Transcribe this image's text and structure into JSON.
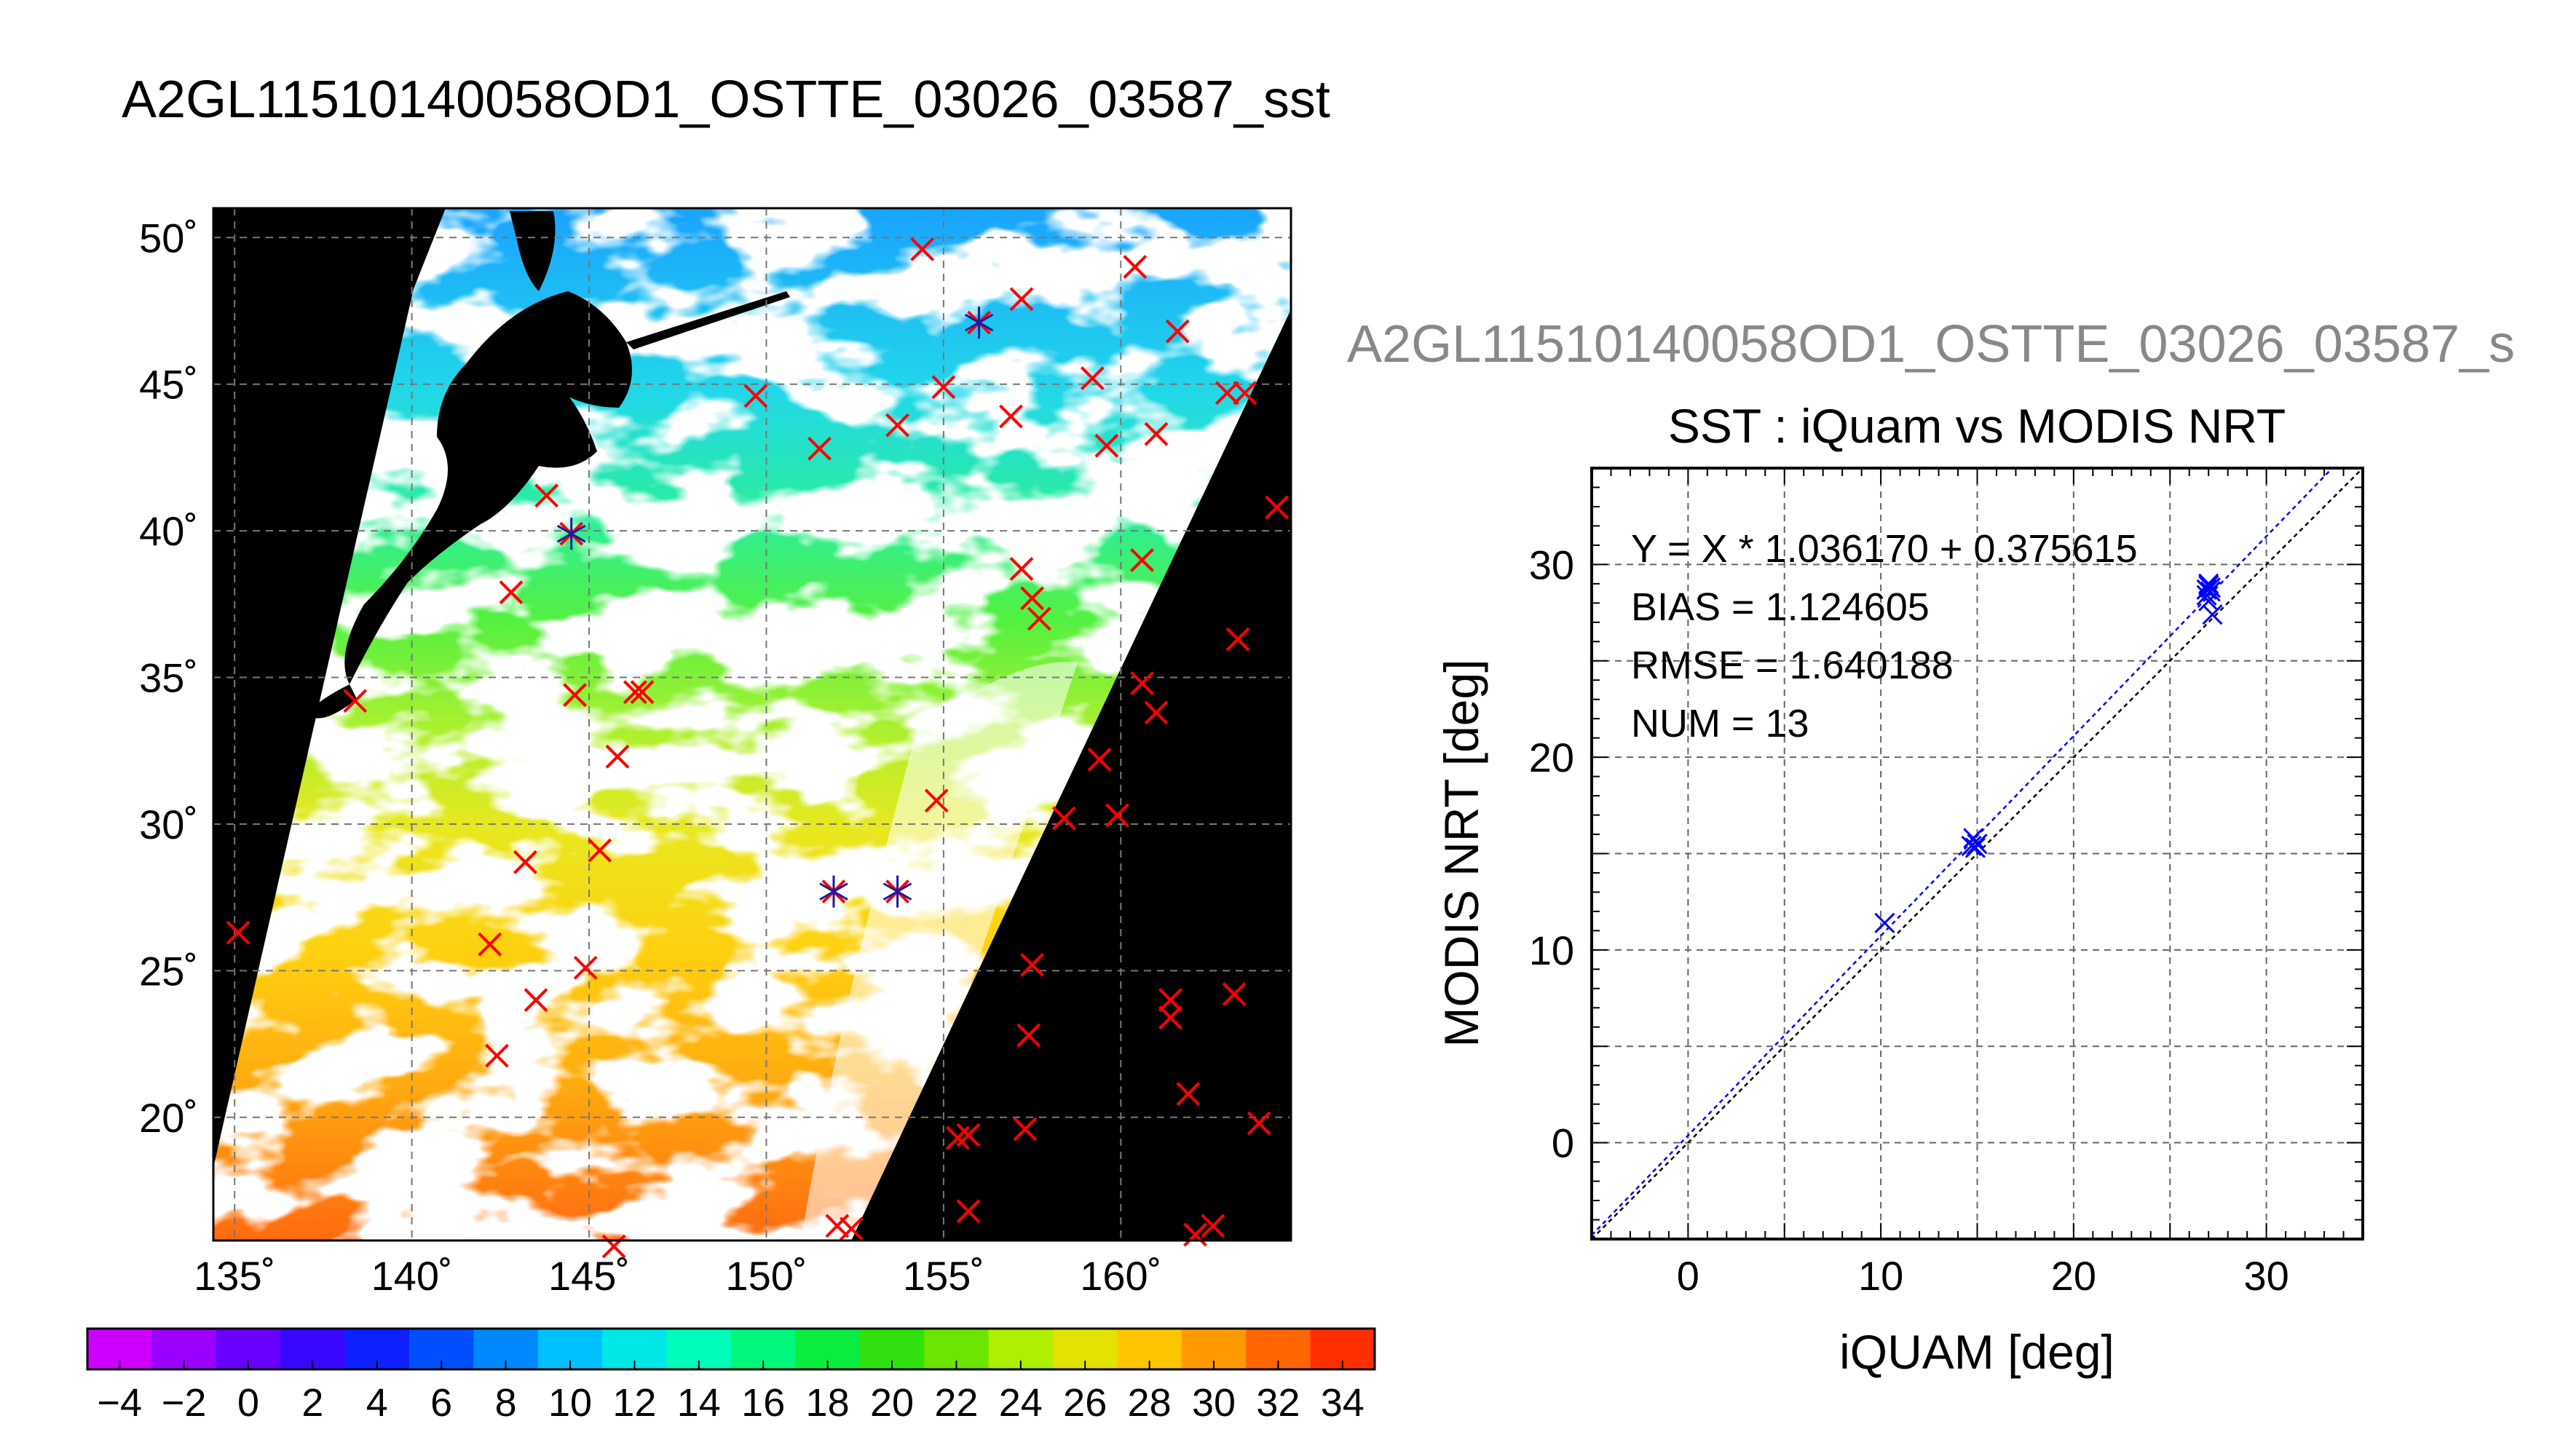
{
  "main_title": "A2GL11510140058OD1_OSTTE_03026_03587_sst",
  "sub_title": "A2GL11510140058OD1_OSTTE_03026_03587_s",
  "chart_data": [
    {
      "type": "map",
      "lon_ticks": [
        "135˚",
        "140˚",
        "145˚",
        "150˚",
        "155˚",
        "160˚"
      ],
      "lat_ticks": [
        "20˚",
        "25˚",
        "30˚",
        "35˚",
        "40˚",
        "45˚",
        "50˚"
      ],
      "lon_values": [
        135,
        140,
        145,
        150,
        155,
        160
      ],
      "lat_values": [
        20,
        25,
        30,
        35,
        40,
        45,
        50
      ],
      "xlim": [
        134.4,
        164.8
      ],
      "ylim": [
        15.8,
        51.0
      ],
      "grid": true,
      "background": "#000000",
      "match_points": [
        [
          135.1,
          26.3
        ],
        [
          138.4,
          34.2
        ],
        [
          142.2,
          25.9
        ],
        [
          142.4,
          22.1
        ],
        [
          142.8,
          37.9
        ],
        [
          143.2,
          28.7
        ],
        [
          143.5,
          24.0
        ],
        [
          143.8,
          41.2
        ],
        [
          144.5,
          39.9
        ],
        [
          144.6,
          34.4
        ],
        [
          144.9,
          25.1
        ],
        [
          145.3,
          29.1
        ],
        [
          145.8,
          32.3
        ],
        [
          146.3,
          34.5
        ],
        [
          146.5,
          34.5
        ],
        [
          149.7,
          44.6
        ],
        [
          151.5,
          42.8
        ],
        [
          151.9,
          27.7
        ],
        [
          152.0,
          16.3
        ],
        [
          152.4,
          16.2
        ],
        [
          153.7,
          27.7
        ],
        [
          153.7,
          43.6
        ],
        [
          154.4,
          49.6
        ],
        [
          154.8,
          30.8
        ],
        [
          155.0,
          44.9
        ],
        [
          155.4,
          19.3
        ],
        [
          155.7,
          19.4
        ],
        [
          155.7,
          16.8
        ],
        [
          156.0,
          47.1
        ],
        [
          156.9,
          43.9
        ],
        [
          157.2,
          38.7
        ],
        [
          157.2,
          47.9
        ],
        [
          157.3,
          19.6
        ],
        [
          157.4,
          22.8
        ],
        [
          157.5,
          25.2
        ],
        [
          157.5,
          37.7
        ],
        [
          157.7,
          37.0
        ],
        [
          158.4,
          30.2
        ],
        [
          159.2,
          45.2
        ],
        [
          159.4,
          32.2
        ],
        [
          159.6,
          42.9
        ],
        [
          159.9,
          30.3
        ],
        [
          160.4,
          49.0
        ],
        [
          160.6,
          39.0
        ],
        [
          160.6,
          34.8
        ],
        [
          161.0,
          33.8
        ],
        [
          161.0,
          43.3
        ],
        [
          161.4,
          24.0
        ],
        [
          161.4,
          23.4
        ],
        [
          161.6,
          46.8
        ],
        [
          161.9,
          20.8
        ],
        [
          162.1,
          16.0
        ],
        [
          162.6,
          16.3
        ],
        [
          163.0,
          44.7
        ],
        [
          163.2,
          24.2
        ],
        [
          163.3,
          36.3
        ],
        [
          163.5,
          44.7
        ],
        [
          163.9,
          19.8
        ],
        [
          164.4,
          40.8
        ],
        [
          145.7,
          15.6
        ]
      ],
      "blue_points": [
        [
          144.5,
          39.9
        ],
        [
          151.9,
          27.7
        ],
        [
          153.7,
          27.7
        ],
        [
          156.0,
          47.1
        ]
      ],
      "match_color": "#ff0000",
      "blue_color": "#1a1aa0"
    },
    {
      "type": "scatter",
      "title": "SST : iQuam vs MODIS NRT",
      "xlabel": "iQUAM [deg]",
      "ylabel": "MODIS NRT [deg]",
      "xlim": [
        -5,
        35
      ],
      "ylim": [
        -5,
        35
      ],
      "xticks": [
        0,
        10,
        20,
        30
      ],
      "yticks": [
        0,
        10,
        20,
        30
      ],
      "grid": true,
      "annotations": [
        "Y = X * 1.036170 + 0.375615",
        "BIAS = 1.124605",
        "RMSE = 1.640188",
        "NUM = 13"
      ],
      "points": [
        {
          "x": 10.2,
          "y": 11.4
        },
        {
          "x": 14.8,
          "y": 15.8
        },
        {
          "x": 14.9,
          "y": 15.3
        },
        {
          "x": 15.0,
          "y": 15.5
        },
        {
          "x": 14.7,
          "y": 15.4
        },
        {
          "x": 27.0,
          "y": 28.9
        },
        {
          "x": 27.1,
          "y": 28.6
        },
        {
          "x": 26.9,
          "y": 28.7
        },
        {
          "x": 27.0,
          "y": 28.1
        },
        {
          "x": 27.2,
          "y": 27.4
        },
        {
          "x": 27.0,
          "y": 29.0
        },
        {
          "x": 26.9,
          "y": 28.4
        },
        {
          "x": 27.1,
          "y": 28.8
        }
      ],
      "fit": {
        "slope": 1.03617,
        "intercept": 0.375615
      },
      "point_color": "#0000ff"
    },
    {
      "type": "colorbar",
      "min": -5,
      "max": 35,
      "tick_labels": [
        "−4",
        "−2",
        "0",
        "2",
        "4",
        "6",
        "8",
        "10",
        "12",
        "14",
        "16",
        "18",
        "20",
        "22",
        "24",
        "26",
        "28",
        "30",
        "32",
        "34"
      ],
      "tick_values": [
        -4,
        -2,
        0,
        2,
        4,
        6,
        8,
        10,
        12,
        14,
        16,
        18,
        20,
        22,
        24,
        26,
        28,
        30,
        32,
        34
      ]
    }
  ]
}
